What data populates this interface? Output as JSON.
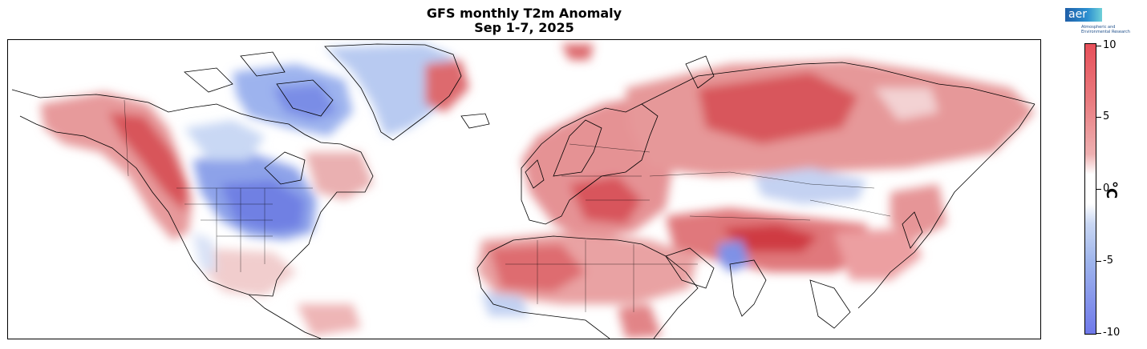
{
  "title": {
    "line1": "GFS monthly T2m Anomaly",
    "line2": "Sep 1-7, 2025"
  },
  "logo": {
    "word": "aer",
    "subtitle_line1": "Atmospheric and",
    "subtitle_line2": "Environmental Research"
  },
  "colorbar": {
    "unit": "°C",
    "ticks": [
      "10",
      "5",
      "0",
      "-5",
      "-10"
    ],
    "colors": {
      "warm_strong": "#e8505a",
      "warm_light": "#eeb0b1",
      "neutral": "#ffffff",
      "cool_light": "#c9d7f3",
      "cool_strong": "#6f79ea"
    }
  },
  "map": {
    "projection": "equirectangular",
    "region": "Northern Hemisphere (North America, Europe, Africa, Asia)",
    "borders_color": "#000000",
    "anomaly_regions": [
      {
        "area": "Alaska / NW Canada",
        "sign": "warm"
      },
      {
        "area": "Central US / Great Lakes",
        "sign": "cool"
      },
      {
        "area": "Hudson Bay / Canadian Arctic",
        "sign": "cool"
      },
      {
        "area": "Greenland",
        "sign": "mixed"
      },
      {
        "area": "Europe",
        "sign": "warm"
      },
      {
        "area": "Siberia",
        "sign": "warm"
      },
      {
        "area": "Central Asia",
        "sign": "cool"
      },
      {
        "area": "North Africa",
        "sign": "warm"
      },
      {
        "area": "Pakistan / NW India",
        "sign": "cool"
      },
      {
        "area": "Tibetan Plateau",
        "sign": "warm"
      }
    ]
  }
}
